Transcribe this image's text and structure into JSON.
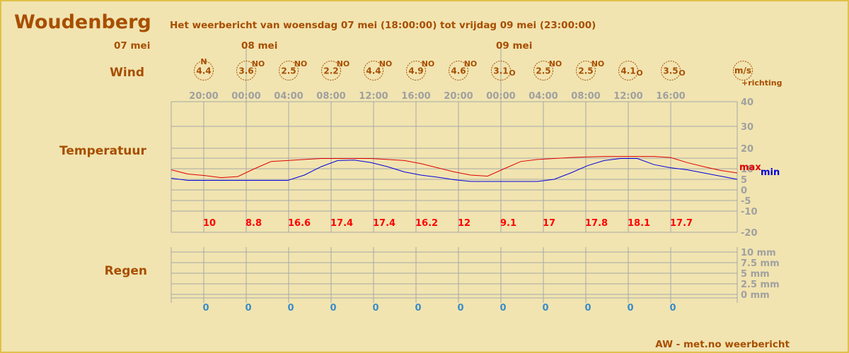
{
  "header": {
    "city": "Woudenberg",
    "subtitle": "Het weerbericht van woensdag 07 mei (18:00:00) tot vrijdag 09 mei (23:00:00)"
  },
  "sections": {
    "wind": "Wind",
    "temperature": "Temperatuur",
    "rain": "Regen"
  },
  "dates": [
    "07 mei",
    "08 mei",
    "09 mei"
  ],
  "wind_legend": {
    "unit": "m/s",
    "note": "+richting"
  },
  "legend": {
    "max": "max",
    "min": "min"
  },
  "footer": "AW - met.no weerbericht",
  "colors": {
    "background": "#f1e4b0",
    "border": "#e0c04a",
    "accent": "#a84e00",
    "max_line": "#e00000",
    "min_line": "#0000e0",
    "rain_text": "#3a8cc8"
  },
  "chart_data": {
    "type": "line",
    "time_labels": [
      "20:00",
      "00:00",
      "04:00",
      "08:00",
      "12:00",
      "16:00",
      "20:00",
      "00:00",
      "04:00",
      "08:00",
      "12:00",
      "16:00"
    ],
    "wind": [
      {
        "time": "20:00",
        "speed": "4.4",
        "direction": "N"
      },
      {
        "time": "00:00",
        "speed": "3.6",
        "direction": "NO"
      },
      {
        "time": "04:00",
        "speed": "2.5",
        "direction": "NO"
      },
      {
        "time": "08:00",
        "speed": "2.2",
        "direction": "NO"
      },
      {
        "time": "12:00",
        "speed": "4.4",
        "direction": "NO"
      },
      {
        "time": "16:00",
        "speed": "4.9",
        "direction": "NO"
      },
      {
        "time": "20:00",
        "speed": "4.6",
        "direction": "NO"
      },
      {
        "time": "00:00",
        "speed": "3.1",
        "direction": "O"
      },
      {
        "time": "04:00",
        "speed": "2.5",
        "direction": "NO"
      },
      {
        "time": "08:00",
        "speed": "2.5",
        "direction": "NO"
      },
      {
        "time": "12:00",
        "speed": "4.1",
        "direction": "O"
      },
      {
        "time": "16:00",
        "speed": "3.5",
        "direction": "O"
      }
    ],
    "temperature": {
      "ylim": [
        -20,
        40
      ],
      "yticks": [
        "40",
        "30",
        "20",
        "10",
        "5",
        "0",
        "-5",
        "-10",
        "-20"
      ],
      "max_labels": [
        "10",
        "8.8",
        "16.6",
        "17.4",
        "17.4",
        "16.2",
        "12",
        "9.1",
        "17",
        "17.8",
        "18.1",
        "17.7"
      ],
      "series": [
        {
          "name": "max",
          "values": [
            9.5,
            7.5,
            6.8,
            5.8,
            6.3,
            10,
            13.5,
            14,
            14.5,
            15,
            15,
            15,
            15,
            14.5,
            14,
            12.5,
            10.5,
            8.5,
            7,
            6.5,
            10,
            13.5,
            14.5,
            15,
            15.5,
            15.8,
            16,
            16,
            16,
            16,
            15.5,
            13,
            11,
            9.2,
            8
          ]
        },
        {
          "name": "min",
          "values": [
            5.5,
            4.5,
            4.5,
            4.5,
            4.5,
            4.5,
            4.5,
            4.5,
            7,
            11,
            14,
            14.2,
            13,
            11,
            8.5,
            7,
            6,
            4.8,
            4,
            4,
            4,
            4,
            4,
            5,
            8,
            11.5,
            14,
            15,
            15,
            12,
            10.5,
            9.5,
            8,
            6.5,
            5
          ]
        }
      ]
    },
    "rain": {
      "ylim": [
        0,
        10
      ],
      "yticks": [
        "10 mm",
        "7.5 mm",
        "5 mm",
        "2.5 mm",
        "0 mm"
      ],
      "values": [
        0,
        0,
        0,
        0,
        0,
        0,
        0,
        0,
        0,
        0,
        0,
        0
      ]
    }
  }
}
